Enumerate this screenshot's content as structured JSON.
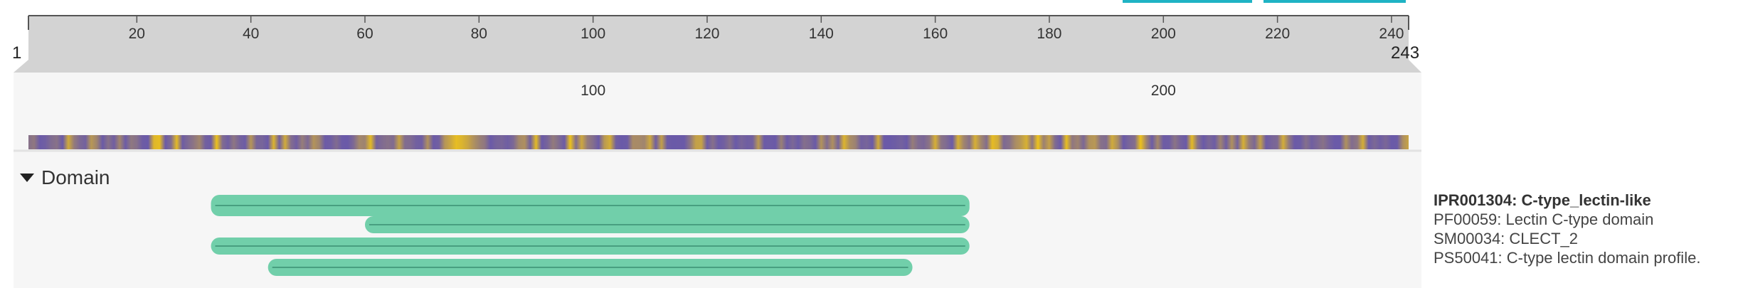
{
  "sequence": {
    "start": 1,
    "end": 243,
    "ticks_top": [
      20,
      40,
      60,
      80,
      100,
      120,
      140,
      160,
      180,
      200,
      220,
      240
    ],
    "ticks_zoom": [
      100,
      200
    ]
  },
  "colors": {
    "ruler_bg": "#d3d3d3",
    "panel_bg": "#f6f6f6",
    "feature_fill": "#71cfaa",
    "feature_line": "#3a8f73",
    "track_low": "#6a5aa8",
    "track_high": "#f0c419",
    "button": "#1fb3c4"
  },
  "track_section": {
    "label": "Domain",
    "expanded": true
  },
  "features": [
    {
      "accession": "IPR001304",
      "start": 33,
      "end": 166
    },
    {
      "accession": "PF00059",
      "start": 60,
      "end": 166
    },
    {
      "accession": "SM00034",
      "start": 33,
      "end": 166
    },
    {
      "accession": "PS50041",
      "start": 43,
      "end": 156
    }
  ],
  "legend": {
    "main": "IPR001304: C-type_lectin-like",
    "items": [
      "PF00059: Lectin C-type domain",
      "SM00034: CLECT_2",
      "PS50041: C-type lectin domain profile."
    ]
  }
}
